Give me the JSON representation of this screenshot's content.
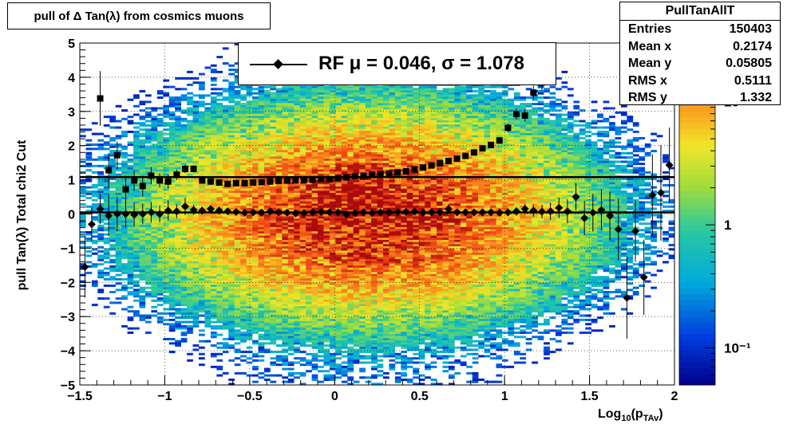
{
  "title": "pull of Δ Tan(λ) from cosmics muons",
  "stats": {
    "name": "PullTanAllT",
    "rows": [
      {
        "label": "Entries",
        "value": "150403"
      },
      {
        "label": "Mean x",
        "value": "0.2174"
      },
      {
        "label": "Mean y",
        "value": "0.05805"
      },
      {
        "label": "RMS x",
        "value": "0.5111"
      },
      {
        "label": "RMS y",
        "value": "1.332"
      }
    ]
  },
  "legend": {
    "text": "RF μ =  0.046, σ =   1.078"
  },
  "chart_data": {
    "type": "heatmap",
    "title": "pull of Δ Tan(λ) from cosmics muons",
    "xlabel_main": "Log",
    "xlabel_sub1": "10",
    "xlabel_mid": "(p",
    "xlabel_sub2": "TAv",
    "xlabel_end": ")",
    "ylabel": "pull Tan(λ)  Total chi2 Cut",
    "xlim": [
      -1.5,
      2
    ],
    "ylim": [
      -5,
      5
    ],
    "x_ticks": [
      -1.5,
      -1,
      -0.5,
      0,
      0.5,
      1,
      1.5,
      2
    ],
    "x_tick_labels": [
      "−1.5",
      "−1",
      "−0.5",
      "0",
      "0.5",
      "1",
      "1.5",
      "2"
    ],
    "y_ticks": [
      -5,
      -4,
      -3,
      -2,
      -1,
      0,
      1,
      2,
      3,
      4,
      5
    ],
    "y_tick_labels": [
      "−5",
      "−4",
      "−3",
      "−2",
      "−1",
      "0",
      "1",
      "2",
      "3",
      "4",
      "5"
    ],
    "z_scale": "log",
    "z_range": [
      0.05,
      30
    ],
    "z_ticks": [
      0.1,
      1,
      10
    ],
    "z_tick_labels": [
      "10⁻¹",
      "1",
      "10"
    ],
    "grid": true,
    "mean_fit": {
      "name": "RF",
      "mu": 0.046,
      "sigma": 1.078
    },
    "series": [
      {
        "marker": "diamond",
        "x": [
          -1.47,
          -1.43,
          -1.38,
          -1.33,
          -1.28,
          -1.23,
          -1.18,
          -1.13,
          -1.08,
          -1.03,
          -0.98,
          -0.93,
          -0.88,
          -0.83,
          -0.78,
          -0.73,
          -0.68,
          -0.63,
          -0.58,
          -0.53,
          -0.48,
          -0.43,
          -0.38,
          -0.33,
          -0.28,
          -0.23,
          -0.18,
          -0.13,
          -0.08,
          -0.03,
          0.02,
          0.07,
          0.12,
          0.17,
          0.22,
          0.27,
          0.32,
          0.37,
          0.42,
          0.47,
          0.52,
          0.57,
          0.62,
          0.67,
          0.72,
          0.77,
          0.82,
          0.87,
          0.92,
          0.97,
          1.02,
          1.07,
          1.12,
          1.17,
          1.22,
          1.27,
          1.32,
          1.37,
          1.42,
          1.47,
          1.52,
          1.57,
          1.62,
          1.67,
          1.72,
          1.77,
          1.82,
          1.87,
          1.92,
          1.97
        ],
        "y": [
          -1.55,
          -0.3,
          0.15,
          -0.05,
          0.0,
          0.0,
          -0.02,
          0.0,
          0.05,
          0.0,
          0.1,
          0.08,
          0.22,
          0.12,
          0.1,
          0.15,
          0.1,
          0.08,
          0.06,
          0.04,
          0.05,
          0.04,
          0.08,
          0.05,
          0.04,
          0.02,
          0.03,
          0.05,
          0.06,
          0.05,
          0.05,
          -0.02,
          0.02,
          0.05,
          0.03,
          0.05,
          0.05,
          0.06,
          0.06,
          0.07,
          0.04,
          0.05,
          0.05,
          0.15,
          0.05,
          0.05,
          0.05,
          0.05,
          0.05,
          0.04,
          0.05,
          0.08,
          0.15,
          0.1,
          0.07,
          0.08,
          0.18,
          0.08,
          0.5,
          -0.12,
          0.04,
          0.12,
          -0.05,
          -0.45,
          -2.45,
          -0.5,
          -1.85,
          0.55,
          0.62,
          1.43
        ],
        "err": [
          0.9,
          0.5,
          0.45,
          0.6,
          0.5,
          0.4,
          0.35,
          0.3,
          0.3,
          0.25,
          0.3,
          0.2,
          0.25,
          0.15,
          0.12,
          0.1,
          0.08,
          0.07,
          0.05,
          0.04,
          0.03,
          0.03,
          0.03,
          0.02,
          0.02,
          0.02,
          0.02,
          0.02,
          0.02,
          0.02,
          0.02,
          0.02,
          0.02,
          0.02,
          0.02,
          0.02,
          0.02,
          0.02,
          0.02,
          0.02,
          0.03,
          0.03,
          0.03,
          0.04,
          0.04,
          0.05,
          0.06,
          0.07,
          0.08,
          0.09,
          0.1,
          0.12,
          0.15,
          0.18,
          0.2,
          0.25,
          0.3,
          0.35,
          0.4,
          0.5,
          0.55,
          0.6,
          0.7,
          0.9,
          1.2,
          0.9,
          1.1,
          1.2,
          1.4,
          1.1
        ]
      },
      {
        "marker": "square",
        "x": [
          -1.38,
          -1.33,
          -1.28,
          -1.23,
          -1.18,
          -1.13,
          -1.08,
          -1.03,
          -0.98,
          -0.93,
          -0.88,
          -0.83,
          -0.78,
          -0.73,
          -0.68,
          -0.63,
          -0.58,
          -0.53,
          -0.48,
          -0.43,
          -0.38,
          -0.33,
          -0.28,
          -0.23,
          -0.18,
          -0.13,
          -0.08,
          -0.03,
          0.02,
          0.07,
          0.12,
          0.17,
          0.22,
          0.27,
          0.32,
          0.37,
          0.42,
          0.47,
          0.52,
          0.57,
          0.62,
          0.67,
          0.72,
          0.77,
          0.82,
          0.87,
          0.92,
          0.97,
          1.02,
          1.07,
          1.12,
          1.17,
          1.22,
          1.27
        ],
        "y": [
          3.38,
          1.28,
          1.72,
          0.72,
          0.98,
          0.82,
          1.12,
          0.98,
          0.95,
          1.15,
          1.32,
          1.32,
          0.98,
          0.95,
          0.92,
          0.88,
          0.9,
          0.9,
          0.92,
          0.93,
          0.95,
          0.97,
          0.98,
          0.98,
          0.99,
          1.0,
          1.02,
          1.02,
          1.05,
          1.07,
          1.1,
          1.12,
          1.15,
          1.17,
          1.18,
          1.22,
          1.25,
          1.3,
          1.36,
          1.42,
          1.48,
          1.55,
          1.62,
          1.7,
          1.8,
          1.92,
          2.02,
          2.15,
          2.52,
          2.92,
          2.88,
          3.55,
          3.85,
          4.1
        ],
        "err": [
          0.8,
          0.5,
          0.4,
          0.4,
          0.3,
          0.3,
          0.25,
          0.2,
          0.2,
          0.15,
          0.12,
          0.1,
          0.08,
          0.06,
          0.05,
          0.04,
          0.03,
          0.03,
          0.02,
          0.02,
          0.02,
          0.02,
          0.02,
          0.02,
          0.02,
          0.02,
          0.02,
          0.02,
          0.02,
          0.02,
          0.02,
          0.02,
          0.02,
          0.02,
          0.02,
          0.02,
          0.03,
          0.03,
          0.03,
          0.04,
          0.04,
          0.05,
          0.05,
          0.06,
          0.07,
          0.08,
          0.09,
          0.1,
          0.12,
          0.15,
          0.18,
          0.2,
          0.25,
          0.3
        ]
      }
    ],
    "fit_lines": [
      {
        "x": [
          -1.5,
          2
        ],
        "y": [
          0.046,
          0.046
        ]
      },
      {
        "x": [
          -1.5,
          2
        ],
        "y": [
          1.078,
          1.078
        ]
      }
    ]
  }
}
